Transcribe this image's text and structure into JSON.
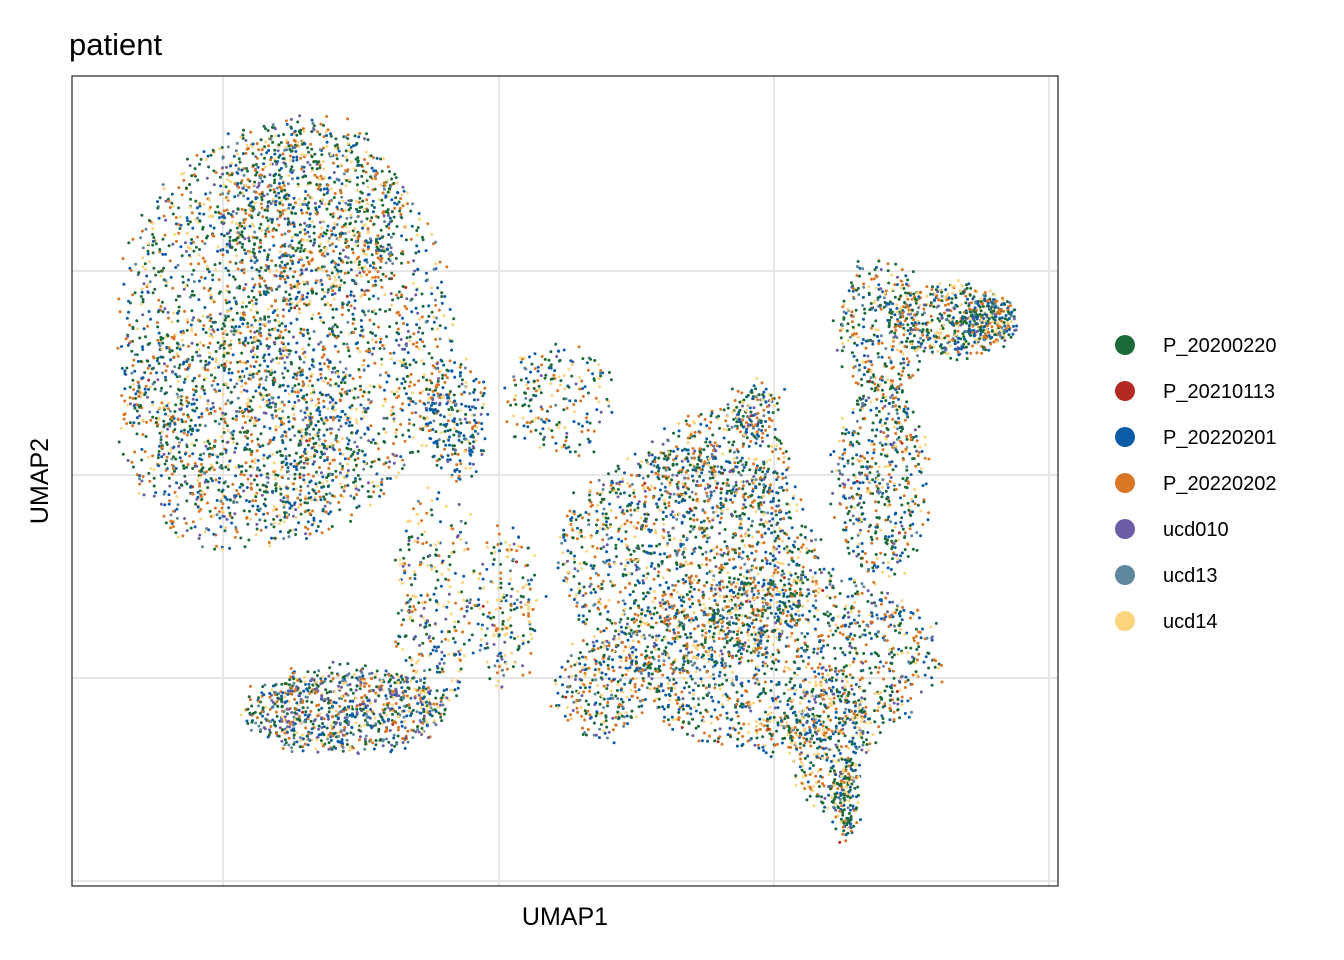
{
  "chart_data": {
    "type": "scatter",
    "title": "patient",
    "xlabel": "UMAP1",
    "ylabel": "UMAP2",
    "xticks_labeled": false,
    "yticks_labeled": false,
    "grid": true,
    "legend_position": "right",
    "series": [
      {
        "name": "P_20200220",
        "color": "#1B6B3A"
      },
      {
        "name": "P_20210113",
        "color": "#B22A22"
      },
      {
        "name": "P_20220201",
        "color": "#0A5CA8"
      },
      {
        "name": "P_20220202",
        "color": "#D97523"
      },
      {
        "name": "ucd010",
        "color": "#6B5CA5"
      },
      {
        "name": "ucd13",
        "color": "#5E879E"
      },
      {
        "name": "ucd14",
        "color": "#FDD57E"
      }
    ]
  }
}
